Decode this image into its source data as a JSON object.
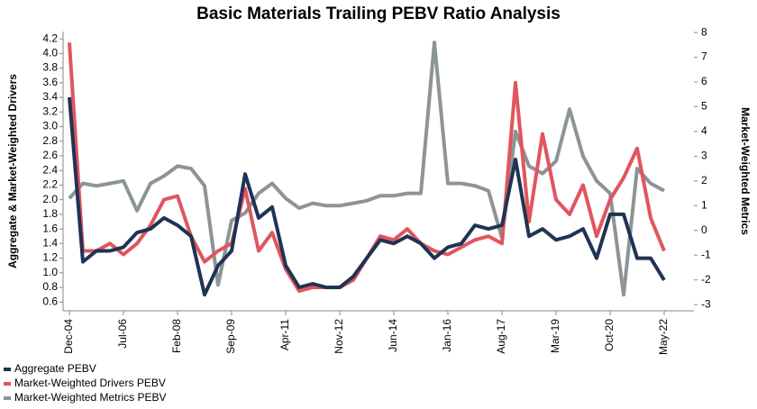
{
  "chart_data": {
    "type": "line",
    "title": "Basic Materials Trailing PEBV Ratio Analysis",
    "y_label": "Aggregate & Market-Weighted Drivers",
    "y2_label": "Market-Weighted Metrics",
    "categories": [
      "Dec-04",
      null,
      null,
      null,
      "Jul-06",
      null,
      null,
      null,
      "Feb-08",
      null,
      null,
      null,
      "Sep-09",
      null,
      null,
      null,
      "Apr-11",
      null,
      null,
      null,
      "Nov-12",
      null,
      null,
      null,
      "Jun-14",
      null,
      null,
      null,
      "Jan-16",
      null,
      null,
      null,
      "Aug-17",
      null,
      null,
      null,
      "Mar-19",
      null,
      null,
      null,
      "Oct-20",
      null,
      null,
      null,
      "May-22"
    ],
    "ylim": [
      0.48,
      4.3
    ],
    "yticks": [
      0.6,
      0.8,
      {
        "value": 1,
        "label": "1.0"
      },
      1.2,
      1.4,
      1.6,
      1.8,
      {
        "value": 2,
        "label": "2.0"
      },
      2.2,
      2.4,
      2.6,
      2.8,
      {
        "value": 3,
        "label": "3.0"
      },
      3.2,
      3.4,
      3.6,
      3.8,
      {
        "value": 4,
        "label": "4.0"
      },
      4.2
    ],
    "y2lim": [
      -3.25,
      8.04
    ],
    "y2ticks": [
      -3,
      -2,
      -1,
      0,
      1,
      2,
      3,
      4,
      5,
      6,
      7,
      8
    ],
    "legend": "bottom-left",
    "series": [
      {
        "name": "Aggregate PEBV",
        "color": "#1f3354",
        "values": [
          3.4,
          1.15,
          1.3,
          1.3,
          1.35,
          1.55,
          1.6,
          1.75,
          1.65,
          1.5,
          0.7,
          1.1,
          1.3,
          2.35,
          1.75,
          1.9,
          1.1,
          0.8,
          0.85,
          0.8,
          0.8,
          0.95,
          1.2,
          1.45,
          1.4,
          1.5,
          1.4,
          1.2,
          1.35,
          1.4,
          1.65,
          1.6,
          1.65,
          2.55,
          1.5,
          1.6,
          1.45,
          1.5,
          1.6,
          1.2,
          1.8,
          1.8,
          1.2,
          1.2,
          0.9
        ]
      },
      {
        "name": "Market-Weighted Drivers PEBV",
        "color": "#e0555f",
        "values": [
          4.15,
          1.3,
          1.3,
          1.4,
          1.25,
          1.4,
          1.65,
          2.0,
          2.05,
          1.5,
          1.15,
          1.3,
          1.4,
          2.15,
          1.3,
          1.55,
          1.05,
          0.75,
          0.8,
          0.8,
          0.8,
          0.9,
          1.2,
          1.5,
          1.45,
          1.6,
          1.4,
          1.3,
          1.25,
          1.35,
          1.45,
          1.5,
          1.4,
          3.6,
          1.7,
          2.9,
          2.0,
          1.8,
          2.2,
          1.5,
          2.0,
          2.3,
          2.7,
          1.75,
          1.3
        ]
      },
      {
        "name": "Market-Weighted Metrics PEBV",
        "color": "#8c9496",
        "axis": "y2",
        "values": [
          1.3,
          1.9,
          1.8,
          1.9,
          2.0,
          0.8,
          1.9,
          2.2,
          2.6,
          2.5,
          1.8,
          -2.2,
          0.4,
          0.7,
          1.5,
          1.9,
          1.3,
          0.9,
          1.1,
          1.0,
          1.0,
          1.1,
          1.2,
          1.4,
          1.4,
          1.5,
          1.5,
          7.6,
          1.9,
          1.9,
          1.8,
          1.6,
          -0.3,
          4.0,
          2.6,
          2.3,
          2.8,
          4.9,
          3.0,
          2.0,
          1.5,
          -2.6,
          2.5,
          1.9,
          1.6
        ]
      }
    ]
  }
}
